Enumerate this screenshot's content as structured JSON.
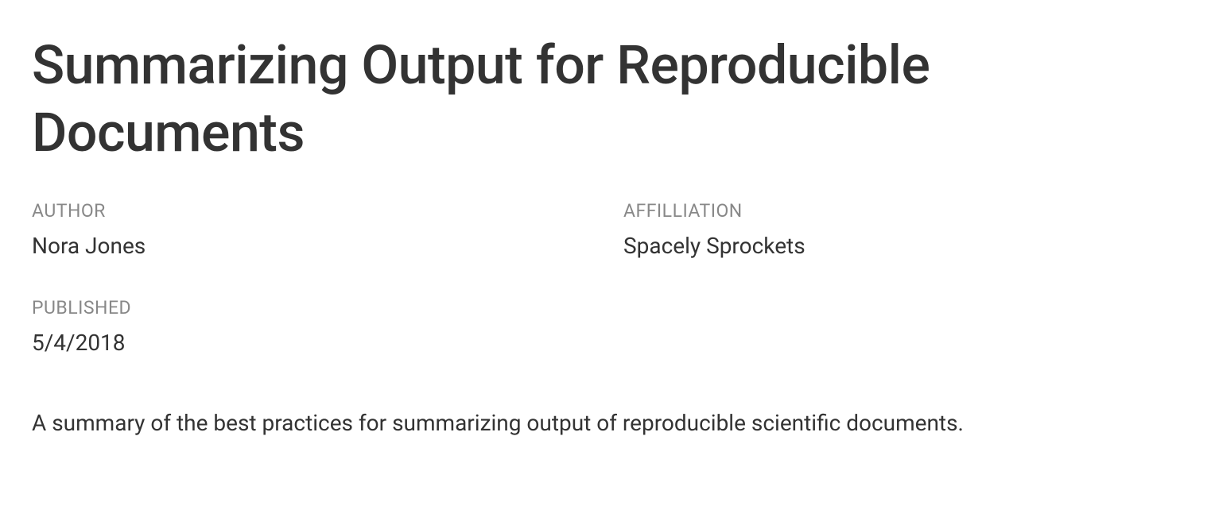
{
  "title": "Summarizing Output for Reproducible Documents",
  "meta": {
    "author": {
      "label": "AUTHOR",
      "value": "Nora Jones"
    },
    "affiliation": {
      "label": "AFFILLIATION",
      "value": "Spacely Sprockets"
    },
    "published": {
      "label": "PUBLISHED",
      "value": "5/4/2018"
    }
  },
  "abstract": "A summary of the best practices for summarizing output of reproducible scientific documents."
}
